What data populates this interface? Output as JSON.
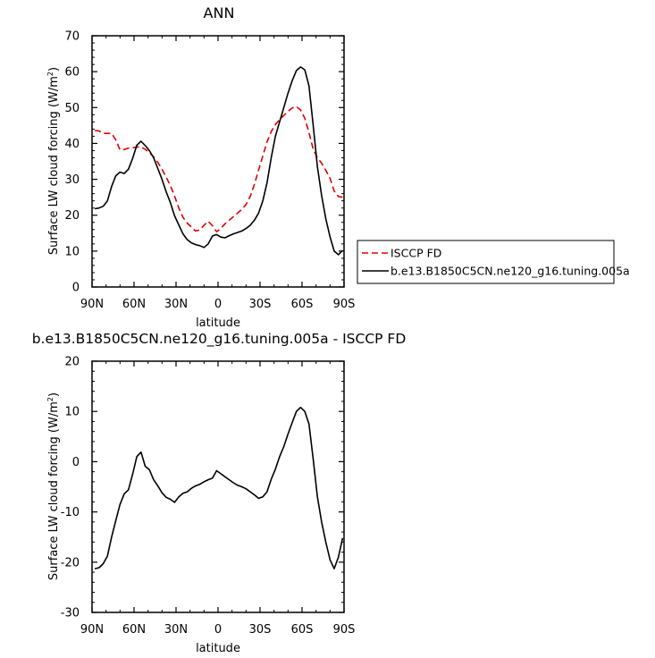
{
  "chart_data": [
    {
      "type": "line",
      "title": "ANN",
      "xlabel": "latitude",
      "ylabel": "Surface LW cloud forcing (W/m",
      "ylabel_sup": "2",
      "ylabel_close": ")",
      "xlim": [
        -90,
        90
      ],
      "ylim": [
        0,
        70
      ],
      "x_ticks": [
        -90,
        -60,
        -30,
        0,
        30,
        60,
        90
      ],
      "x_tick_labels": [
        "90N",
        "60N",
        "30N",
        "0",
        "30S",
        "60S",
        "90S"
      ],
      "y_ticks": [
        0,
        10,
        20,
        30,
        40,
        50,
        60,
        70
      ],
      "y_tick_labels": [
        "0",
        "10",
        "20",
        "30",
        "40",
        "50",
        "60",
        "70"
      ],
      "grid": false,
      "legend": "outside-right",
      "series": [
        {
          "name": "ISCCP FD",
          "color": "#e00000",
          "dash": "dashed",
          "x": [
            -88,
            -85,
            -82,
            -79,
            -76,
            -73,
            -70,
            -67,
            -64,
            -61,
            -58,
            -55,
            -52,
            -49,
            -46,
            -43,
            -40,
            -37,
            -34,
            -31,
            -28,
            -25,
            -22,
            -19,
            -16,
            -13,
            -10,
            -7,
            -4,
            -1,
            2,
            5,
            8,
            11,
            14,
            17,
            20,
            23,
            26,
            29,
            32,
            35,
            38,
            41,
            44,
            47,
            50,
            53,
            56,
            59,
            62,
            65,
            68,
            71,
            74,
            77,
            80,
            83,
            86,
            89
          ],
          "y": [
            43.6,
            43.5,
            42.8,
            42.8,
            42.8,
            41.0,
            38.2,
            38.3,
            38.7,
            38.8,
            39.0,
            39.0,
            38.4,
            37.4,
            36.3,
            34.7,
            32.8,
            30.6,
            28.2,
            25.3,
            22.0,
            19.4,
            17.8,
            16.7,
            15.6,
            15.9,
            17.2,
            18.3,
            17.1,
            15.4,
            16.3,
            17.6,
            18.6,
            19.6,
            20.6,
            21.6,
            23.0,
            25.2,
            28.6,
            32.6,
            36.5,
            40.4,
            43.3,
            45.3,
            46.6,
            47.8,
            48.9,
            49.9,
            50.3,
            49.3,
            47.0,
            43.0,
            38.4,
            36.0,
            34.5,
            32.5,
            30.3,
            26.7,
            25.2,
            25.0
          ]
        },
        {
          "name": "b.e13.B1850C5CN.ne120_g16.tuning.005a",
          "color": "#000000",
          "dash": "solid",
          "x": [
            -88,
            -85,
            -82,
            -79,
            -76,
            -73,
            -70,
            -67,
            -64,
            -61,
            -58,
            -55,
            -52,
            -49,
            -46,
            -43,
            -40,
            -37,
            -34,
            -31,
            -28,
            -25,
            -22,
            -19,
            -16,
            -13,
            -10,
            -7,
            -4,
            -1,
            2,
            5,
            8,
            11,
            14,
            17,
            20,
            23,
            26,
            29,
            32,
            35,
            38,
            41,
            44,
            47,
            50,
            53,
            56,
            59,
            62,
            65,
            68,
            71,
            74,
            77,
            80,
            83,
            86,
            89
          ],
          "y": [
            21.8,
            22.0,
            22.5,
            24.0,
            28.0,
            31.0,
            32.0,
            31.6,
            32.8,
            35.8,
            39.5,
            40.6,
            39.4,
            38.0,
            36.0,
            33.0,
            30.0,
            26.5,
            23.5,
            19.8,
            17.3,
            14.8,
            13.2,
            12.3,
            11.8,
            11.5,
            11.0,
            12.0,
            14.2,
            14.6,
            13.9,
            13.7,
            14.3,
            14.8,
            15.2,
            15.6,
            16.3,
            17.2,
            18.6,
            20.6,
            24.0,
            29.0,
            36.0,
            42.0,
            46.0,
            50.0,
            54.0,
            57.5,
            60.3,
            61.3,
            60.5,
            56.0,
            45.0,
            33.5,
            25.5,
            19.0,
            14.0,
            10.0,
            9.0,
            10.2
          ]
        }
      ]
    },
    {
      "type": "line",
      "title": "b.e13.B1850C5CN.ne120_g16.tuning.005a - ISCCP FD",
      "xlabel": "latitude",
      "ylabel": "Surface LW cloud forcing (W/m",
      "ylabel_sup": "2",
      "ylabel_close": ")",
      "xlim": [
        -90,
        90
      ],
      "ylim": [
        -30,
        20
      ],
      "x_ticks": [
        -90,
        -60,
        -30,
        0,
        30,
        60,
        90
      ],
      "x_tick_labels": [
        "90N",
        "60N",
        "30N",
        "0",
        "30S",
        "60S",
        "90S"
      ],
      "y_ticks": [
        -30,
        -20,
        -10,
        0,
        10,
        20
      ],
      "y_tick_labels": [
        "-30",
        "-20",
        "-10",
        "0",
        "10",
        "20"
      ],
      "grid": false,
      "series": [
        {
          "color": "#000000",
          "dash": "solid",
          "x": [
            -88,
            -85,
            -82,
            -79,
            -76,
            -73,
            -70,
            -67,
            -64,
            -61,
            -58,
            -55,
            -52,
            -49,
            -46,
            -43,
            -40,
            -37,
            -34,
            -31,
            -28,
            -25,
            -22,
            -19,
            -16,
            -13,
            -10,
            -7,
            -4,
            -1,
            2,
            5,
            8,
            11,
            14,
            17,
            20,
            23,
            26,
            29,
            32,
            35,
            38,
            41,
            44,
            47,
            50,
            53,
            56,
            59,
            62,
            65,
            68,
            71,
            74,
            77,
            80,
            83,
            86,
            89
          ],
          "y": [
            -21.3,
            -21.1,
            -20.3,
            -18.8,
            -15.0,
            -11.7,
            -8.5,
            -6.4,
            -5.6,
            -2.5,
            1.0,
            1.9,
            -0.9,
            -1.6,
            -3.6,
            -4.8,
            -6.2,
            -7.1,
            -7.5,
            -8.1,
            -7.0,
            -6.3,
            -6.0,
            -5.3,
            -4.8,
            -4.5,
            -4.0,
            -3.6,
            -3.3,
            -1.8,
            -2.4,
            -3.0,
            -3.6,
            -4.2,
            -4.7,
            -5.0,
            -5.4,
            -6.0,
            -6.6,
            -7.3,
            -7.0,
            -6.0,
            -3.5,
            -1.5,
            1.0,
            3.0,
            5.5,
            7.8,
            10.0,
            10.8,
            10.0,
            7.5,
            0.5,
            -7.0,
            -12.0,
            -16.0,
            -19.5,
            -21.3,
            -19.0,
            -15.2
          ]
        }
      ]
    }
  ]
}
